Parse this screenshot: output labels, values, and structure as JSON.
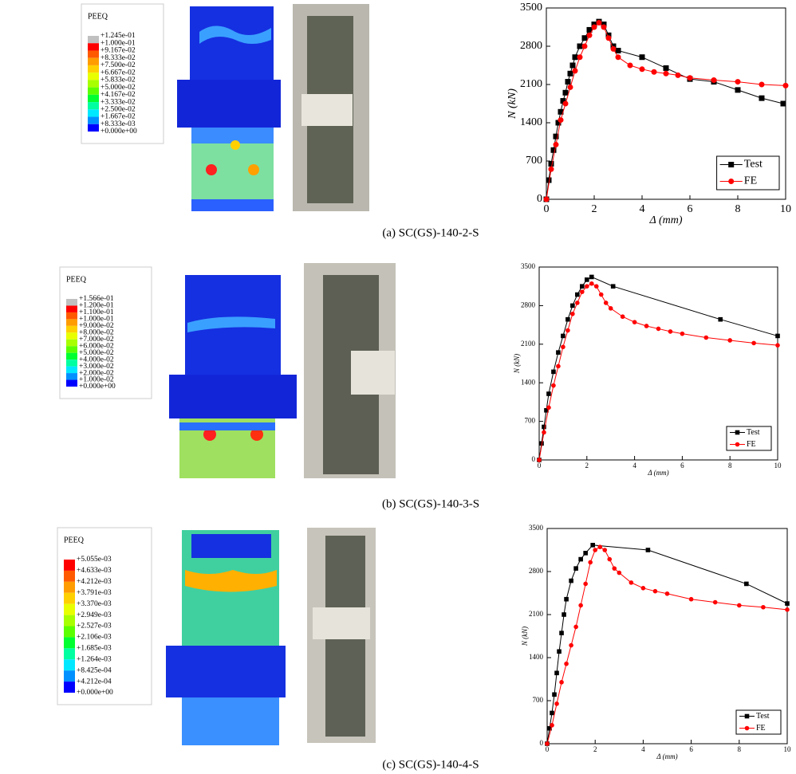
{
  "figures": [
    {
      "caption": "(a) SC(GS)-140-2-S",
      "legend_title": "PEEQ",
      "legend_labels": [
        "+1.245e-01",
        "+1.000e-01",
        "+9.167e-02",
        "+8.333e-02",
        "+7.500e-02",
        "+6.667e-02",
        "+5.833e-02",
        "+5.000e-02",
        "+4.167e-02",
        "+3.333e-02",
        "+2.500e-02",
        "+1.667e-02",
        "+8.333e-03",
        "+0.000e+00"
      ]
    },
    {
      "caption": "(b) SC(GS)-140-3-S",
      "legend_title": "PEEQ",
      "legend_labels": [
        "+1.566e-01",
        "+1.200e-01",
        "+1.100e-01",
        "+1.000e-01",
        "+9.000e-02",
        "+8.000e-02",
        "+7.000e-02",
        "+6.000e-02",
        "+5.000e-02",
        "+4.000e-02",
        "+3.000e-02",
        "+2.000e-02",
        "+1.000e-02",
        "+0.000e+00"
      ]
    },
    {
      "caption": "(c) SC(GS)-140-4-S",
      "legend_title": "PEEQ",
      "legend_labels": [
        "+5.055e-03",
        "+4.633e-03",
        "+4.212e-03",
        "+3.791e-03",
        "+3.370e-03",
        "+2.949e-03",
        "+2.527e-03",
        "+2.106e-03",
        "+1.685e-03",
        "+1.264e-03",
        "+8.425e-04",
        "+4.212e-04",
        "+0.000e+00"
      ]
    }
  ],
  "chart_data": [
    {
      "type": "line",
      "x_label": "Δ (mm)",
      "y_label": "N (kN)",
      "xlim": [
        0,
        10
      ],
      "ylim": [
        0,
        3500
      ],
      "xticks": [
        0,
        2,
        4,
        6,
        8,
        10
      ],
      "yticks": [
        0,
        700,
        1400,
        2100,
        2800,
        3500
      ],
      "legend": "lower right",
      "series": [
        {
          "name": "Test",
          "color": "#000000",
          "marker": "square",
          "x": [
            0,
            0.1,
            0.2,
            0.3,
            0.4,
            0.5,
            0.6,
            0.7,
            0.8,
            0.9,
            1.0,
            1.1,
            1.2,
            1.4,
            1.6,
            1.8,
            2.0,
            2.2,
            2.4,
            2.6,
            2.8,
            3.0,
            4.0,
            5.0,
            6.0,
            7.0,
            8.0,
            9.0,
            9.9
          ],
          "values": [
            0,
            350,
            650,
            900,
            1150,
            1400,
            1600,
            1800,
            1950,
            2150,
            2300,
            2450,
            2600,
            2800,
            2950,
            3100,
            3200,
            3250,
            3200,
            3000,
            2800,
            2720,
            2600,
            2400,
            2200,
            2150,
            2000,
            1850,
            1750
          ]
        },
        {
          "name": "FE",
          "color": "#ff0000",
          "marker": "circle",
          "x": [
            0,
            0.2,
            0.4,
            0.6,
            0.8,
            1.0,
            1.2,
            1.4,
            1.6,
            1.8,
            2.0,
            2.2,
            2.4,
            2.6,
            2.8,
            3.0,
            3.5,
            4.0,
            4.5,
            5.0,
            5.5,
            6.0,
            7.0,
            8.0,
            9.0,
            10.0
          ],
          "values": [
            0,
            550,
            1000,
            1450,
            1750,
            2050,
            2350,
            2600,
            2800,
            3000,
            3150,
            3230,
            3150,
            2950,
            2750,
            2600,
            2450,
            2380,
            2330,
            2300,
            2270,
            2220,
            2180,
            2150,
            2100,
            2080
          ]
        }
      ]
    },
    {
      "type": "line",
      "x_label": "Δ (mm)",
      "y_label": "N (kN)",
      "xlim": [
        0,
        10
      ],
      "ylim": [
        0,
        3500
      ],
      "xticks": [
        0,
        2,
        4,
        6,
        8,
        10
      ],
      "yticks": [
        0,
        700,
        1400,
        2100,
        2800,
        3500
      ],
      "legend": "lower right",
      "series": [
        {
          "name": "Test",
          "color": "#000000",
          "marker": "square",
          "x": [
            0,
            0.1,
            0.2,
            0.3,
            0.4,
            0.6,
            0.8,
            1.0,
            1.2,
            1.4,
            1.6,
            1.8,
            2.0,
            2.2,
            3.1,
            7.6,
            10.0
          ],
          "values": [
            0,
            300,
            600,
            900,
            1200,
            1600,
            1950,
            2250,
            2550,
            2800,
            3000,
            3150,
            3270,
            3320,
            3150,
            2550,
            2250
          ]
        },
        {
          "name": "FE",
          "color": "#ff0000",
          "marker": "circle",
          "x": [
            0,
            0.2,
            0.4,
            0.6,
            0.8,
            1.0,
            1.2,
            1.4,
            1.6,
            1.8,
            2.0,
            2.2,
            2.4,
            2.6,
            2.8,
            3.0,
            3.5,
            4.0,
            4.5,
            5.0,
            5.5,
            6.0,
            7.0,
            8.0,
            9.0,
            10.0
          ],
          "values": [
            0,
            500,
            950,
            1350,
            1700,
            2050,
            2350,
            2650,
            2850,
            3050,
            3150,
            3200,
            3150,
            3000,
            2850,
            2750,
            2600,
            2500,
            2430,
            2380,
            2330,
            2290,
            2220,
            2170,
            2120,
            2080
          ]
        }
      ]
    },
    {
      "type": "line",
      "x_label": "Δ (mm)",
      "y_label": "N (kN)",
      "xlim": [
        0,
        10
      ],
      "ylim": [
        0,
        3500
      ],
      "xticks": [
        0,
        2,
        4,
        6,
        8,
        10
      ],
      "yticks": [
        0,
        700,
        1400,
        2100,
        2800,
        3500
      ],
      "legend": "lower right",
      "series": [
        {
          "name": "Test",
          "color": "#000000",
          "marker": "square",
          "x": [
            0,
            0.1,
            0.2,
            0.3,
            0.4,
            0.5,
            0.6,
            0.7,
            0.8,
            1.0,
            1.2,
            1.4,
            1.6,
            1.9,
            4.2,
            8.3,
            10.0
          ],
          "values": [
            0,
            250,
            500,
            800,
            1150,
            1500,
            1800,
            2100,
            2350,
            2650,
            2850,
            3000,
            3100,
            3230,
            3150,
            2600,
            2280
          ]
        },
        {
          "name": "FE",
          "color": "#ff0000",
          "marker": "circle",
          "x": [
            0,
            0.2,
            0.4,
            0.6,
            0.8,
            1.0,
            1.2,
            1.4,
            1.6,
            1.8,
            2.0,
            2.2,
            2.4,
            2.6,
            2.8,
            3.0,
            3.5,
            4.0,
            4.5,
            5.0,
            6.0,
            7.0,
            8.0,
            9.0,
            10.0
          ],
          "values": [
            0,
            300,
            650,
            1000,
            1300,
            1600,
            1900,
            2250,
            2600,
            2950,
            3150,
            3200,
            3150,
            3000,
            2850,
            2780,
            2620,
            2530,
            2480,
            2440,
            2350,
            2300,
            2250,
            2220,
            2180
          ]
        }
      ]
    }
  ]
}
